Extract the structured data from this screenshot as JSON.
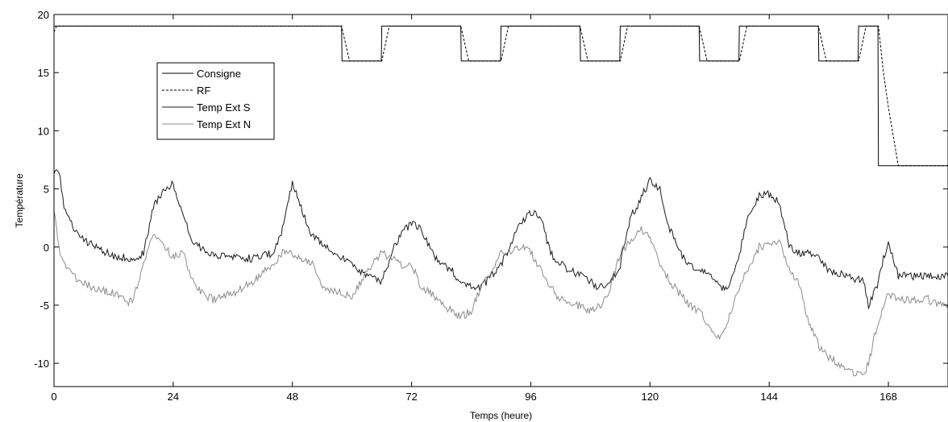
{
  "chart_data": {
    "type": "line",
    "xlabel": "Temps (heure)",
    "ylabel": "Température",
    "xlim": [
      0,
      180
    ],
    "ylim": [
      -12,
      20
    ],
    "xticks": [
      0,
      24,
      48,
      72,
      96,
      120,
      144,
      168
    ],
    "yticks": [
      -10,
      -5,
      0,
      5,
      10,
      15,
      20
    ],
    "grid": false,
    "legend_position": "top-left",
    "series": [
      {
        "name": "Consigne",
        "color": "#000000",
        "style": "solid",
        "x": [
          0,
          57.9,
          58,
          65.9,
          66,
          81.9,
          82,
          89.9,
          90,
          105.9,
          106,
          113.9,
          114,
          129.9,
          130,
          137.9,
          138,
          153.9,
          154,
          161.9,
          162,
          165.9,
          166,
          180
        ],
        "y": [
          19,
          19,
          16,
          16,
          19,
          19,
          16,
          16,
          19,
          19,
          16,
          16,
          19,
          19,
          16,
          16,
          19,
          19,
          16,
          16,
          19,
          19,
          7,
          7
        ]
      },
      {
        "name": "RF",
        "color": "#000000",
        "style": "dashed",
        "x": [
          0,
          0.5,
          57.9,
          59.5,
          66,
          67.5,
          81.9,
          83.5,
          90,
          91.5,
          105.9,
          107.5,
          114,
          115.5,
          129.9,
          131.5,
          138,
          139.5,
          153.9,
          155.5,
          162,
          163.5,
          166,
          167,
          168,
          169,
          170,
          180
        ],
        "y": [
          18.5,
          19,
          19,
          16,
          16,
          19,
          19,
          16,
          16,
          19,
          19,
          16,
          16,
          19,
          19,
          16,
          16,
          19,
          19,
          16,
          16,
          19,
          19,
          15,
          12,
          9.5,
          7,
          7
        ]
      },
      {
        "name": "Temp Ext S",
        "color": "#1a1a1a",
        "style": "solid",
        "x": [
          0,
          1,
          2,
          4,
          8,
          12,
          16,
          18,
          20,
          22,
          24,
          26,
          28,
          30,
          32,
          36,
          40,
          44,
          46,
          48,
          50,
          52,
          54,
          58,
          60,
          62,
          64,
          66,
          68,
          70,
          72,
          74,
          76,
          78,
          80,
          82,
          84,
          86,
          90,
          94,
          96,
          98,
          100,
          102,
          104,
          106,
          108,
          110,
          112,
          114,
          116,
          118,
          120,
          122,
          124,
          126,
          128,
          130,
          132,
          134,
          136,
          138,
          140,
          142,
          144,
          146,
          148,
          150,
          152,
          154,
          156,
          158,
          160,
          162,
          163,
          164,
          165,
          166,
          167,
          168,
          169,
          170,
          172,
          174,
          176,
          178,
          180
        ],
        "y": [
          6.5,
          6.5,
          3.5,
          1.5,
          0,
          -0.8,
          -1,
          -0.5,
          3.5,
          4.8,
          5.5,
          2.5,
          0.5,
          -0.3,
          -0.8,
          -0.9,
          -1,
          -0.5,
          1.5,
          5.5,
          3,
          1,
          0.2,
          -1,
          -1.5,
          -2.2,
          -2.5,
          -3,
          -0.5,
          1.2,
          2,
          1.5,
          -0.5,
          -1.5,
          -2,
          -3,
          -3.5,
          -3.5,
          -1.5,
          2,
          3,
          2.5,
          -0.5,
          -1.5,
          -2,
          -2.5,
          -3,
          -3.5,
          -3,
          -1.5,
          2.5,
          4,
          5.8,
          5,
          1.5,
          -0.5,
          -1.5,
          -2,
          -2.5,
          -3.5,
          -3.5,
          -0.5,
          3,
          4.5,
          4.5,
          4,
          0,
          -0.5,
          -0.5,
          -1,
          -2,
          -2.3,
          -2.5,
          -2.8,
          -3,
          -5,
          -4,
          -3,
          -1,
          0.5,
          -1,
          -2.5,
          -2.5,
          -2.5,
          -2.5,
          -2.5,
          -2.5
        ]
      },
      {
        "name": "Temp Ext N",
        "color": "#8c8c8c",
        "style": "solid",
        "x": [
          0,
          1,
          2,
          4,
          8,
          12,
          15,
          16,
          18,
          20,
          22,
          24,
          26,
          28,
          30,
          32,
          36,
          40,
          44,
          46,
          48,
          50,
          52,
          54,
          58,
          60,
          62,
          64,
          66,
          68,
          70,
          72,
          74,
          76,
          78,
          80,
          82,
          84,
          86,
          90,
          94,
          96,
          98,
          100,
          102,
          104,
          106,
          108,
          110,
          112,
          114,
          116,
          118,
          120,
          122,
          124,
          126,
          128,
          130,
          132,
          134,
          136,
          138,
          140,
          142,
          144,
          146,
          148,
          150,
          152,
          154,
          156,
          158,
          160,
          162,
          163,
          164,
          165,
          166,
          167,
          168,
          170,
          172,
          174,
          176,
          178,
          180
        ],
        "y": [
          3,
          0,
          -1.5,
          -2.5,
          -3.5,
          -4,
          -4.8,
          -4.5,
          -1.5,
          1,
          0,
          -0.8,
          -0.5,
          -3,
          -4,
          -4.5,
          -4,
          -3,
          -1.5,
          -0.5,
          -0.5,
          -1,
          -1.5,
          -3.5,
          -4,
          -4.2,
          -3,
          -1.5,
          -0.5,
          -1,
          -1.5,
          -1.5,
          -3.5,
          -4,
          -5,
          -5.5,
          -6,
          -5.5,
          -3.5,
          -0.5,
          0,
          -0.5,
          -2,
          -3.5,
          -4.5,
          -5,
          -5,
          -5.5,
          -5,
          -3.5,
          -0.5,
          0.5,
          1.5,
          1,
          -1.5,
          -3,
          -4,
          -5,
          -5.5,
          -7,
          -8,
          -6,
          -3.5,
          -1.5,
          0,
          0.2,
          0.5,
          -2,
          -3,
          -6.5,
          -8.5,
          -9.5,
          -10,
          -10.5,
          -11,
          -11,
          -10,
          -8,
          -6.5,
          -5,
          -4,
          -4.5,
          -4.5,
          -4.5,
          -4.5,
          -5,
          -5
        ]
      }
    ]
  }
}
